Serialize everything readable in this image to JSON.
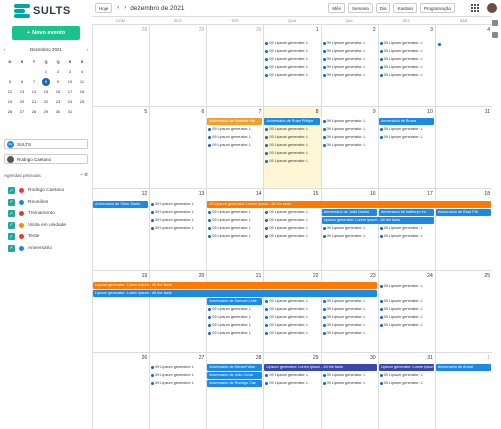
{
  "brand": "SULTS",
  "new_event_label": "Novo evento",
  "mini_cal": {
    "title": "Dezembro 2021",
    "dows": [
      "D",
      "S",
      "T",
      "Q",
      "Q",
      "S",
      "S"
    ],
    "days": [
      "",
      "",
      "",
      "1",
      "2",
      "3",
      "4",
      "5",
      "6",
      "7",
      "8",
      "9",
      "10",
      "11",
      "12",
      "13",
      "14",
      "15",
      "16",
      "17",
      "18",
      "19",
      "20",
      "21",
      "22",
      "23",
      "24",
      "25",
      "26",
      "27",
      "28",
      "29",
      "30",
      "31",
      ""
    ],
    "today": "8"
  },
  "filters": {
    "company": "SULTS",
    "company_badge": "SU",
    "user": "Rodrigo Caetano"
  },
  "agendas": {
    "title": "Agendas pessoais",
    "items": [
      {
        "label": "Rodrigo Caetano",
        "color": "#e53935"
      },
      {
        "label": "Reuniões",
        "color": "#1e88e5"
      },
      {
        "label": "Treinamento",
        "color": "#e53935"
      },
      {
        "label": "Visita em unidade",
        "color": "#fb8c00"
      },
      {
        "label": "Teste",
        "color": "#e53935"
      },
      {
        "label": "Aniversário",
        "color": "#1e88e5"
      }
    ]
  },
  "toolbar": {
    "today_label": "Hoje",
    "prev": "‹",
    "next": "›",
    "month_title": "dezembro de 2021",
    "views": [
      "Mês",
      "Semana",
      "Dia",
      "Kanban",
      "Programação"
    ]
  },
  "calendar": {
    "dows": [
      "DOM",
      "SEG",
      "TER",
      "QUA",
      "QUI",
      "SEX",
      "SÁB"
    ],
    "weeks": [
      {
        "days": [
          "28",
          "29",
          "30",
          "1",
          "2",
          "3",
          "4"
        ],
        "out": [
          true,
          true,
          true,
          false,
          false,
          false,
          false
        ]
      },
      {
        "days": [
          "5",
          "6",
          "7",
          "8",
          "9",
          "10",
          "11"
        ],
        "out": [
          false,
          false,
          false,
          false,
          false,
          false,
          false
        ]
      },
      {
        "days": [
          "12",
          "13",
          "14",
          "15",
          "16",
          "17",
          "18"
        ],
        "out": [
          false,
          false,
          false,
          false,
          false,
          false,
          false
        ]
      },
      {
        "days": [
          "19",
          "20",
          "21",
          "22",
          "23",
          "24",
          "25"
        ],
        "out": [
          false,
          false,
          false,
          false,
          false,
          false,
          false
        ]
      },
      {
        "days": [
          "26",
          "27",
          "28",
          "29",
          "30",
          "31",
          "1"
        ],
        "out": [
          false,
          false,
          false,
          false,
          false,
          false,
          true
        ]
      }
    ],
    "item_text": "09 Lipsum generator: L",
    "bars": {
      "kristofer": "Aniversário de Kristofer Ha",
      "ruan": "Aniversário de Ruan Philipe",
      "bruna": "Aniversário de Bruna",
      "silvio": "Aniversário de Silvio Santo",
      "lipsum_facts_09": "09 Lipsum generator: Lorem Ipsum - All the facts",
      "joao": "Aniversário de João Daniel",
      "katheryn": "Aniversário de katheryn en",
      "brad": "Aniversário de Brad Pitt",
      "lipsum_facts": "Lipsum generator: Lorem Ipsum - All the facts",
      "samuel": "Aniversário de Samuel Leite",
      "denzel": "Aniversário de Denzel Was",
      "julio": "Aniversário de Júlio Cesar",
      "rodrigo": "Aniversário de Rodrigo Cae",
      "andre": "Aniversário de André"
    }
  }
}
